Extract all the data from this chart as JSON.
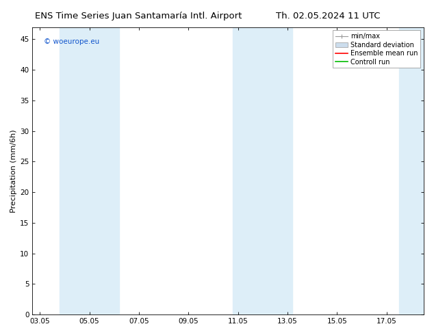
{
  "title_left": "ENS Time Series Juan Santamaría Intl. Airport",
  "title_right": "Th. 02.05.2024 11 UTC",
  "ylabel": "Precipitation (mm/6h)",
  "ylim": [
    0,
    47
  ],
  "yticks": [
    0,
    5,
    10,
    15,
    20,
    25,
    30,
    35,
    40,
    45
  ],
  "xtick_labels": [
    "03.05",
    "05.05",
    "07.05",
    "09.05",
    "11.05",
    "13.05",
    "15.05",
    "17.05"
  ],
  "xtick_positions": [
    0,
    2,
    4,
    6,
    8,
    10,
    12,
    14
  ],
  "xlim": [
    -0.3,
    15.5
  ],
  "background_color": "#ffffff",
  "plot_bg_color": "#ffffff",
  "shaded_bands": [
    {
      "xstart": 0.8,
      "xend": 3.2,
      "color": "#ddeef8"
    },
    {
      "xstart": 7.8,
      "xend": 10.2,
      "color": "#ddeef8"
    },
    {
      "xstart": 14.5,
      "xend": 15.5,
      "color": "#ddeef8"
    }
  ],
  "legend_items": [
    {
      "label": "min/max",
      "type": "errorbar",
      "color": "#999999"
    },
    {
      "label": "Standard deviation",
      "type": "box",
      "color": "#ccdded"
    },
    {
      "label": "Ensemble mean run",
      "type": "line",
      "color": "#ff0000"
    },
    {
      "label": "Controll run",
      "type": "line",
      "color": "#00bb00"
    }
  ],
  "watermark_text": "© woeurope.eu",
  "watermark_color": "#1155cc",
  "title_fontsize": 9.5,
  "tick_fontsize": 7.5,
  "legend_fontsize": 7,
  "ylabel_fontsize": 8
}
